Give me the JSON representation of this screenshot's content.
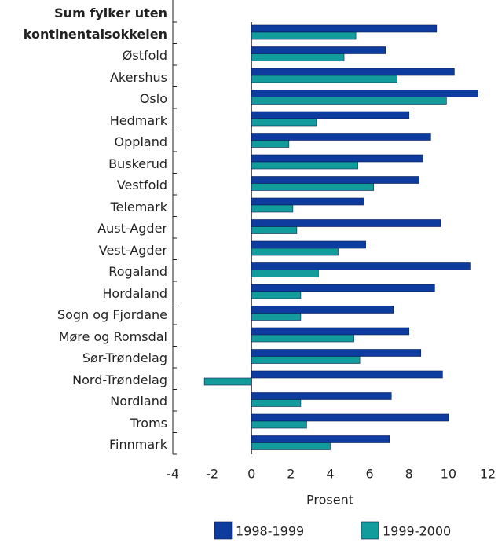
{
  "chart_data": {
    "type": "bar",
    "orientation": "horizontal",
    "categories": [
      "Sum fylker uten\nkontinentalsokkelen",
      "Østfold",
      "Akershus",
      "Oslo",
      "Hedmark",
      "Oppland",
      "Buskerud",
      "Vestfold",
      "Telemark",
      "Aust-Agder",
      "Vest-Agder",
      "Rogaland",
      "Hordaland",
      "Sogn og Fjordane",
      "Møre og Romsdal",
      "Sør-Trøndelag",
      "Nord-Trøndelag",
      "Nordland",
      "Troms",
      "Finnmark"
    ],
    "series": [
      {
        "name": "1998-1999",
        "color": "#0d3b9e",
        "values": [
          9.4,
          6.8,
          10.3,
          11.5,
          8.0,
          9.1,
          8.7,
          8.5,
          5.7,
          9.6,
          5.8,
          11.1,
          9.3,
          7.2,
          8.0,
          8.6,
          9.7,
          7.1,
          10.0,
          7.0
        ]
      },
      {
        "name": "1999-2000",
        "color": "#139c9c",
        "values": [
          5.3,
          4.7,
          7.4,
          9.9,
          3.3,
          1.9,
          5.4,
          6.2,
          2.1,
          2.3,
          4.4,
          3.4,
          2.5,
          2.5,
          5.2,
          5.5,
          -2.4,
          2.5,
          2.8,
          4.0
        ]
      }
    ],
    "xlabel": "Prosent",
    "xlim": [
      -4,
      12
    ],
    "xticks": [
      -4,
      -2,
      0,
      2,
      4,
      6,
      8,
      10,
      12
    ]
  }
}
